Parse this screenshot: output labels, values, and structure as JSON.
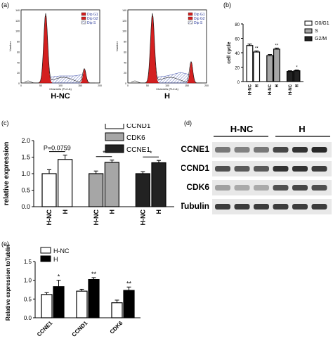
{
  "panels": {
    "a": "(a)",
    "b": "(b)",
    "c": "(c)",
    "d": "(d)",
    "e": "(e)"
  },
  "flow": {
    "hist_ylabel": "Number",
    "hist_xlabel": "Channels (FL2-A)",
    "titles": [
      "H-NC",
      "H"
    ],
    "legend": [
      "Dip G1",
      "Dip G2",
      "Dip S"
    ],
    "xticks": [
      "0",
      "50",
      "100",
      "150",
      "200"
    ],
    "yticks": [
      "0",
      "20",
      "40",
      "60",
      "80",
      "100",
      "120",
      "140"
    ]
  },
  "blot": {
    "groups": [
      "H-NC",
      "H"
    ],
    "rows": [
      "CCNE1",
      "CCND1",
      "CDK6",
      "Tubulin"
    ]
  },
  "chart_data": [
    {
      "type": "bar",
      "panel": "b",
      "ylabel": "cell cycle",
      "ylim": [
        0,
        80
      ],
      "yticks": [
        0,
        20,
        40,
        60,
        80
      ],
      "legend_position": "top-right",
      "groups": [
        {
          "series": "G0/G1",
          "color": "#ffffff",
          "bars": [
            {
              "x": "H-NC",
              "value": 50,
              "err": 2,
              "sig": ""
            },
            {
              "x": "H",
              "value": 41,
              "err": 1.5,
              "sig": "**"
            }
          ]
        },
        {
          "series": "S",
          "color": "#a6a6a6",
          "bars": [
            {
              "x": "H-NC",
              "value": 36,
              "err": 1.5,
              "sig": ""
            },
            {
              "x": "H",
              "value": 45,
              "err": 1.5,
              "sig": "**"
            }
          ]
        },
        {
          "series": "G2/M",
          "color": "#222222",
          "bars": [
            {
              "x": "H-NC",
              "value": 14,
              "err": 1,
              "sig": ""
            },
            {
              "x": "H",
              "value": 15,
              "err": 1,
              "sig": "*"
            }
          ]
        }
      ],
      "legend": [
        "G0/G1",
        "S",
        "G2/M"
      ]
    },
    {
      "type": "bar",
      "panel": "c",
      "ylabel": "relative expression",
      "ylim": [
        0,
        2.0
      ],
      "yticks": [
        "0.0",
        "0.5",
        "1.0",
        "1.5",
        "2.0"
      ],
      "legend_position": "top-right",
      "groups": [
        {
          "series": "CCND1",
          "color": "#ffffff",
          "bars": [
            {
              "x": "H-NC",
              "value": 1.0,
              "err": 0.12
            },
            {
              "x": "H",
              "value": 1.43,
              "err": 0.13
            }
          ],
          "annotation": "P=0.0759"
        },
        {
          "series": "CDK6",
          "color": "#a6a6a6",
          "bars": [
            {
              "x": "H-NC",
              "value": 1.0,
              "err": 0.08
            },
            {
              "x": "H",
              "value": 1.34,
              "err": 0.07
            }
          ],
          "annotation": "*"
        },
        {
          "series": "CCNE1",
          "color": "#222222",
          "bars": [
            {
              "x": "H-NC",
              "value": 1.0,
              "err": 0.06
            },
            {
              "x": "H",
              "value": 1.33,
              "err": 0.07
            }
          ],
          "annotation": "*"
        }
      ],
      "legend": [
        "CCND1",
        "CDK6",
        "CCNE1"
      ]
    },
    {
      "type": "bar",
      "panel": "e",
      "ylabel": "Relative expression toTublin",
      "ylim": [
        0,
        1.5
      ],
      "yticks": [
        "0.0",
        "0.5",
        "1.0",
        "1.5"
      ],
      "legend_position": "top-left",
      "categories": [
        "CCNE1",
        "CCND1",
        "CDK6"
      ],
      "series": [
        {
          "name": "H-NC",
          "color": "#ffffff",
          "values": [
            0.62,
            0.71,
            0.4
          ],
          "err": [
            0.05,
            0.05,
            0.07
          ]
        },
        {
          "name": "H",
          "color": "#000000",
          "values": [
            0.83,
            1.02,
            0.73
          ],
          "err": [
            0.17,
            0.05,
            0.09
          ]
        }
      ],
      "sig": [
        "*",
        "**",
        "**"
      ]
    }
  ]
}
